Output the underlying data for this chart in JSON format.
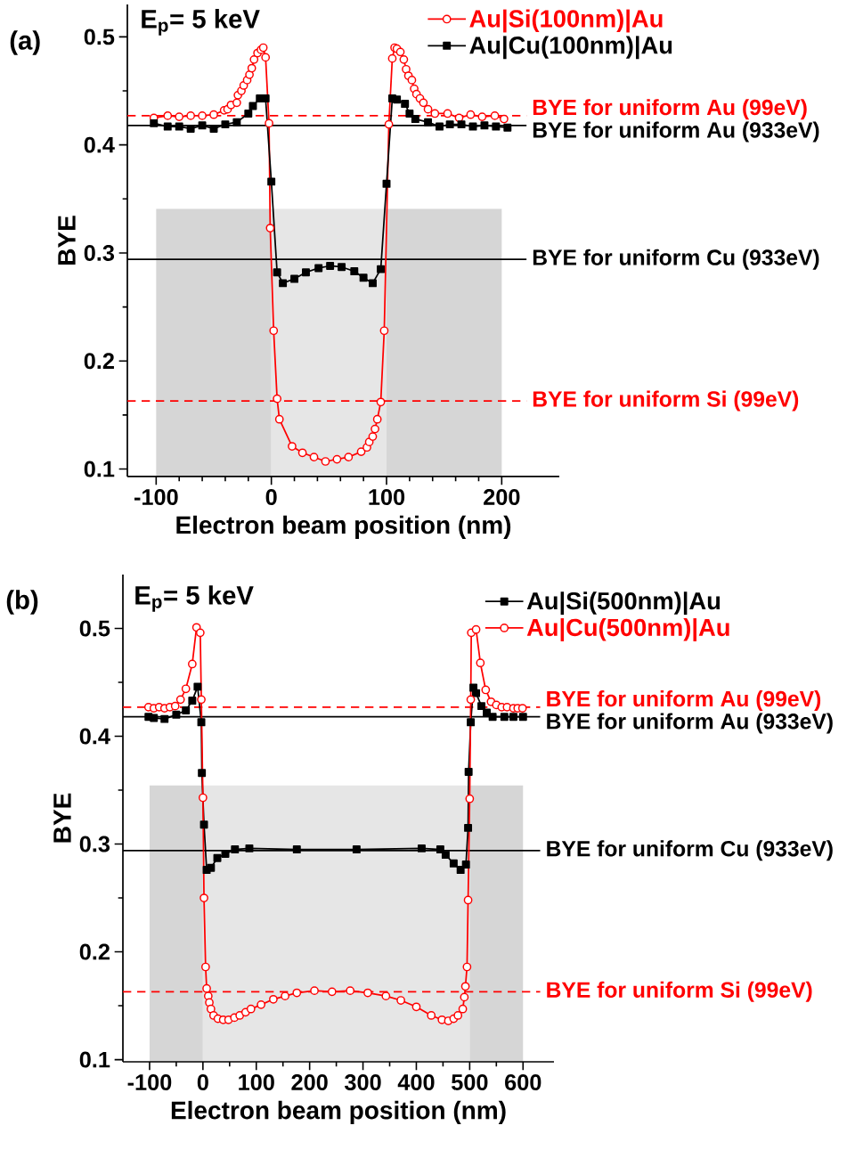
{
  "chart_data": [
    {
      "type": "line",
      "xlabel": "Electron beam position (nm)",
      "ylabel": "BYE",
      "annotations": [
        "(a)",
        "E$_{p}$= 5 keV"
      ],
      "xlim": [
        -125,
        250
      ],
      "ylim": [
        0.093,
        0.53
      ],
      "xticks": [
        -100,
        0,
        100,
        200
      ],
      "yticks": [
        0.1,
        0.2,
        0.3,
        0.4,
        0.5
      ],
      "legend": "top right",
      "series": [
        {
          "name": "Au|Si(100nm)|Au",
          "color": "#ff0000",
          "marker": "circle",
          "line_style": "solid",
          "x": [
            -102,
            -90,
            -80,
            -70,
            -60,
            -50,
            -41,
            -38,
            -35,
            -30,
            -29,
            -26,
            -24,
            -21,
            -19,
            -17,
            -15,
            -12,
            -9,
            -7,
            -5,
            -2,
            -1,
            2,
            5,
            7,
            18,
            27,
            37,
            47,
            57,
            67,
            78,
            83,
            85,
            88,
            90,
            92,
            95,
            98,
            102,
            105,
            107,
            109,
            112,
            115,
            117,
            119,
            122,
            124,
            126,
            129,
            132,
            136,
            142,
            153,
            163,
            173,
            183,
            194,
            202
          ],
          "values": [
            0.425,
            0.427,
            0.426,
            0.427,
            0.427,
            0.428,
            0.432,
            0.433,
            0.437,
            0.439,
            0.446,
            0.45,
            0.455,
            0.46,
            0.465,
            0.471,
            0.479,
            0.485,
            0.488,
            0.49,
            0.481,
            0.42,
            0.323,
            0.228,
            0.165,
            0.146,
            0.121,
            0.115,
            0.111,
            0.107,
            0.109,
            0.111,
            0.116,
            0.12,
            0.125,
            0.13,
            0.137,
            0.146,
            0.162,
            0.228,
            0.419,
            0.48,
            0.49,
            0.489,
            0.486,
            0.479,
            0.47,
            0.464,
            0.46,
            0.452,
            0.447,
            0.443,
            0.439,
            0.433,
            0.429,
            0.429,
            0.425,
            0.428,
            0.426,
            0.427,
            0.424
          ]
        },
        {
          "name": "Au|Cu(100nm)|Au",
          "color": "#000000",
          "marker": "square",
          "line_style": "solid",
          "x": [
            -102,
            -90,
            -80,
            -70,
            -60,
            -50,
            -40,
            -30,
            -20,
            -16,
            -10,
            -5,
            0,
            5,
            10,
            20,
            30,
            41,
            51,
            61,
            72,
            80,
            88,
            95,
            100,
            105,
            109,
            116,
            120,
            125,
            136,
            146,
            155,
            165,
            175,
            185,
            195,
            205
          ],
          "values": [
            0.42,
            0.417,
            0.417,
            0.415,
            0.418,
            0.415,
            0.419,
            0.421,
            0.429,
            0.436,
            0.443,
            0.443,
            0.366,
            0.282,
            0.272,
            0.276,
            0.282,
            0.286,
            0.288,
            0.287,
            0.283,
            0.277,
            0.272,
            0.285,
            0.364,
            0.443,
            0.442,
            0.438,
            0.429,
            0.424,
            0.421,
            0.417,
            0.419,
            0.419,
            0.417,
            0.418,
            0.417,
            0.416
          ]
        }
      ],
      "ref_lines": [
        {
          "axis": "y",
          "value": 0.427,
          "label": "BYE for uniform Au (99eV)",
          "color": "#ff0000",
          "line_style": "dashed"
        },
        {
          "axis": "y",
          "value": 0.418,
          "label": "BYE for uniform Au (933eV)",
          "color": "#000000",
          "line_style": "solid"
        },
        {
          "axis": "y",
          "value": 0.294,
          "label": "BYE for uniform Cu (933eV)",
          "color": "#000000",
          "line_style": "solid"
        },
        {
          "axis": "y",
          "value": 0.163,
          "label": "BYE for uniform Si (99eV)",
          "color": "#ff0000",
          "line_style": "dashed"
        }
      ],
      "bands": [
        {
          "axis": "x",
          "from": -100,
          "to": 0,
          "color": "#d6d6d6"
        },
        {
          "axis": "x",
          "from": 0,
          "to": 100,
          "color": "#e6e6e6"
        },
        {
          "axis": "x",
          "from": 100,
          "to": 200,
          "color": "#d6d6d6"
        }
      ]
    },
    {
      "type": "line",
      "xlabel": "Electron beam position (nm)",
      "ylabel": "BYE",
      "annotations": [
        "(b)",
        "E$_{p}$= 5 keV"
      ],
      "xlim": [
        -150,
        658
      ],
      "ylim": [
        0.098,
        0.55
      ],
      "xticks": [
        -100,
        0,
        100,
        200,
        300,
        400,
        500,
        600
      ],
      "yticks": [
        0.1,
        0.2,
        0.3,
        0.4,
        0.5
      ],
      "legend": "top right",
      "series": [
        {
          "name": "Au|Si(500nm)|Au",
          "color": "#000000",
          "marker": "square",
          "line_style": "solid",
          "x": [
            -102,
            -92,
            -72,
            -50,
            -32,
            -20,
            -10,
            -3,
            -2,
            2,
            7,
            15,
            27,
            42,
            60,
            87,
            176,
            288,
            410,
            445,
            455,
            470,
            483,
            493,
            497,
            498,
            502,
            507,
            512,
            522,
            532,
            543,
            565,
            582,
            600
          ],
          "values": [
            0.418,
            0.417,
            0.416,
            0.42,
            0.424,
            0.433,
            0.446,
            0.413,
            0.366,
            0.318,
            0.276,
            0.278,
            0.287,
            0.291,
            0.295,
            0.296,
            0.295,
            0.295,
            0.296,
            0.295,
            0.29,
            0.282,
            0.276,
            0.281,
            0.315,
            0.367,
            0.413,
            0.445,
            0.44,
            0.428,
            0.422,
            0.418,
            0.418,
            0.418,
            0.418
          ]
        },
        {
          "name": "Au|Cu(500nm)|Au",
          "color": "#ff0000",
          "marker": "circle",
          "line_style": "solid",
          "x": [
            -102,
            -92,
            -82,
            -72,
            -62,
            -52,
            -42,
            -32,
            -20,
            -12,
            -5,
            -3,
            0,
            2,
            5,
            7,
            10,
            12,
            15,
            20,
            28,
            38,
            48,
            59,
            69,
            80,
            90,
            109,
            132,
            154,
            176,
            209,
            242,
            276,
            309,
            343,
            371,
            400,
            428,
            448,
            460,
            470,
            478,
            487,
            490,
            492,
            495,
            497,
            500,
            502,
            503,
            512,
            520,
            530,
            540,
            550,
            560,
            570,
            582,
            590,
            599
          ],
          "values": [
            0.427,
            0.426,
            0.427,
            0.426,
            0.427,
            0.428,
            0.434,
            0.444,
            0.467,
            0.501,
            0.496,
            0.434,
            0.343,
            0.25,
            0.186,
            0.166,
            0.159,
            0.153,
            0.147,
            0.141,
            0.138,
            0.137,
            0.137,
            0.139,
            0.141,
            0.144,
            0.147,
            0.151,
            0.156,
            0.159,
            0.162,
            0.164,
            0.163,
            0.164,
            0.162,
            0.159,
            0.155,
            0.149,
            0.141,
            0.137,
            0.136,
            0.138,
            0.141,
            0.147,
            0.158,
            0.168,
            0.186,
            0.248,
            0.342,
            0.434,
            0.496,
            0.499,
            0.468,
            0.443,
            0.432,
            0.429,
            0.427,
            0.427,
            0.426,
            0.426,
            0.426
          ]
        }
      ],
      "ref_lines": [
        {
          "axis": "y",
          "value": 0.427,
          "label": "BYE for uniform Au (99eV)",
          "color": "#ff0000",
          "line_style": "dashed"
        },
        {
          "axis": "y",
          "value": 0.418,
          "label": "BYE for uniform Au (933eV)",
          "color": "#000000",
          "line_style": "solid"
        },
        {
          "axis": "y",
          "value": 0.294,
          "label": "BYE for uniform Cu (933eV)",
          "color": "#000000",
          "line_style": "solid"
        },
        {
          "axis": "y",
          "value": 0.163,
          "label": "BYE for uniform Si (99eV)",
          "color": "#ff0000",
          "line_style": "dashed"
        }
      ],
      "bands": [
        {
          "axis": "x",
          "from": -100,
          "to": 0,
          "color": "#d6d6d6"
        },
        {
          "axis": "x",
          "from": 0,
          "to": 500,
          "color": "#e6e6e6"
        },
        {
          "axis": "x",
          "from": 500,
          "to": 600,
          "color": "#d6d6d6"
        }
      ]
    }
  ]
}
